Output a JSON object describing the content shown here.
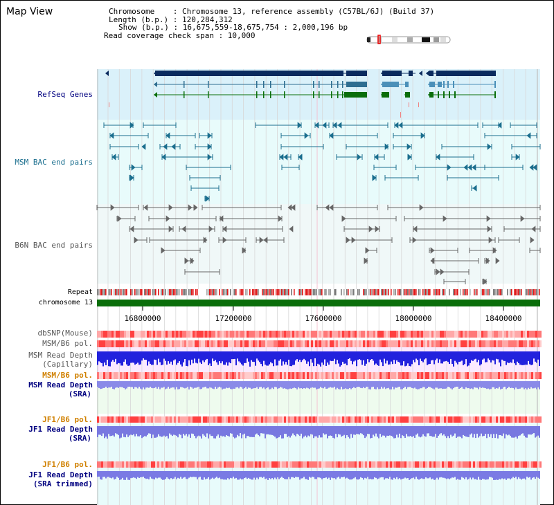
{
  "header": {
    "title": "Map View",
    "info_lines": [
      "Chromosome    : Chromosome 13, reference assembly (C57BL/6J) (Build 37)",
      "Length (b.p.) : 120,284,312",
      "Show (b.p.) : 16,675,559-18,675,754 : 2,000,196 bp",
      "Read coverage check span : 10,000"
    ]
  },
  "tracks": {
    "refseq": "RefSeq Genes",
    "msm_bac": "MSM BAC end pairs",
    "b6n_bac": "B6N BAC end pairs",
    "repeat": "Repeat",
    "chrom": "chromosome 13",
    "dbsnp": "dbSNP(Mouse)",
    "msm_b6_pol_1": "MSM/B6 pol.",
    "msm_read_depth_cap_1": "MSM Read Depth",
    "msm_read_depth_cap_2": "(Capillary)",
    "msm_b6_pol_2": "MSM/B6 pol.",
    "msm_read_depth_sra_1": "MSM Read Depth",
    "msm_read_depth_sra_2": "(SRA)",
    "jf1_b6_pol_1": "JF1/B6 pol.",
    "jf1_read_depth_sra_1": "JF1 Read Depth",
    "jf1_read_depth_sra_2": "(SRA)",
    "jf1_b6_pol_2": "JF1/B6 pol.",
    "jf1_read_depth_trim_1": "JF1 Read Depth",
    "jf1_read_depth_trim_2": "(SRA trimmed)"
  },
  "axis_ticks": [
    "16800000",
    "17200000",
    "17600000",
    "18000000",
    "18400000"
  ],
  "colors": {
    "gene_navy": "#0a2a5e",
    "gene_teal": "#4a8fb8",
    "gene_green": "#0a6e0a",
    "bac_msm": "#1a6e8e",
    "bac_b6n": "#666666",
    "refseq_bg": "#daf1fa",
    "msm_bac_bg": "#e8fbfb",
    "b6n_bac_bg": "#f0f8f8",
    "chrom_green": "#0a6e0a",
    "snp_red": "#ff3c3c",
    "depth_blue": "#3434e0",
    "depth_lilac": "#8888f0",
    "label_navy": "#000080",
    "label_teal": "#1a6e8e",
    "label_orange": "#d08000"
  }
}
